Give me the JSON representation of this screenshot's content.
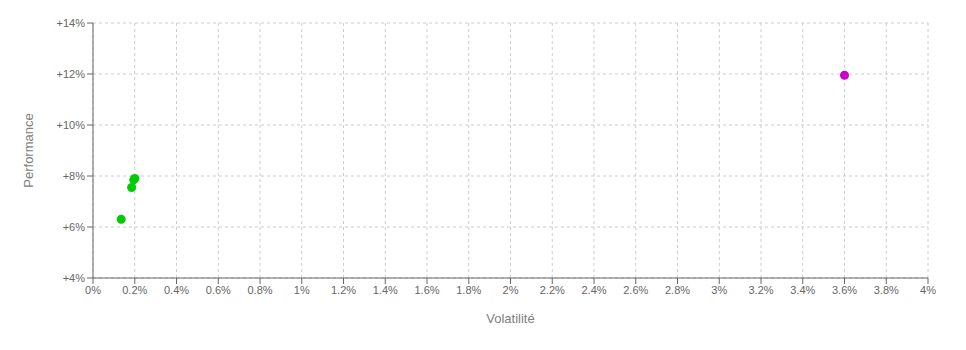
{
  "chart_data": {
    "type": "scatter",
    "xlabel": "Volatilité",
    "ylabel": "Performance",
    "xlim": [
      0.0,
      0.04
    ],
    "ylim": [
      0.04,
      0.14
    ],
    "xticks": [
      {
        "value": 0.0,
        "label": "0%"
      },
      {
        "value": 0.002,
        "label": "0.2%"
      },
      {
        "value": 0.004,
        "label": "0.4%"
      },
      {
        "value": 0.006,
        "label": "0.6%"
      },
      {
        "value": 0.008,
        "label": "0.8%"
      },
      {
        "value": 0.01,
        "label": "1%"
      },
      {
        "value": 0.012,
        "label": "1.2%"
      },
      {
        "value": 0.014,
        "label": "1.4%"
      },
      {
        "value": 0.016,
        "label": "1.6%"
      },
      {
        "value": 0.018,
        "label": "1.8%"
      },
      {
        "value": 0.02,
        "label": "2%"
      },
      {
        "value": 0.022,
        "label": "2.2%"
      },
      {
        "value": 0.024,
        "label": "2.4%"
      },
      {
        "value": 0.026,
        "label": "2.6%"
      },
      {
        "value": 0.028,
        "label": "2.8%"
      },
      {
        "value": 0.03,
        "label": "3%"
      },
      {
        "value": 0.032,
        "label": "3.2%"
      },
      {
        "value": 0.034,
        "label": "3.4%"
      },
      {
        "value": 0.036,
        "label": "3.6%"
      },
      {
        "value": 0.038,
        "label": "3.8%"
      },
      {
        "value": 0.04,
        "label": "4%"
      }
    ],
    "yticks": [
      {
        "value": 0.04,
        "label": "+4%"
      },
      {
        "value": 0.06,
        "label": "+6%"
      },
      {
        "value": 0.08,
        "label": "+8%"
      },
      {
        "value": 0.1,
        "label": "+10%"
      },
      {
        "value": 0.12,
        "label": "+12%"
      },
      {
        "value": 0.14,
        "label": "+14%"
      }
    ],
    "grid": true,
    "series": [
      {
        "color": "#00cc00",
        "x": [
          0.00185,
          0.00195,
          0.002,
          0.00135
        ],
        "values": [
          0.0755,
          0.0785,
          0.079,
          0.063
        ]
      },
      {
        "color": "#cc00cc",
        "x": [
          0.036
        ],
        "values": [
          0.1195
        ]
      }
    ]
  }
}
